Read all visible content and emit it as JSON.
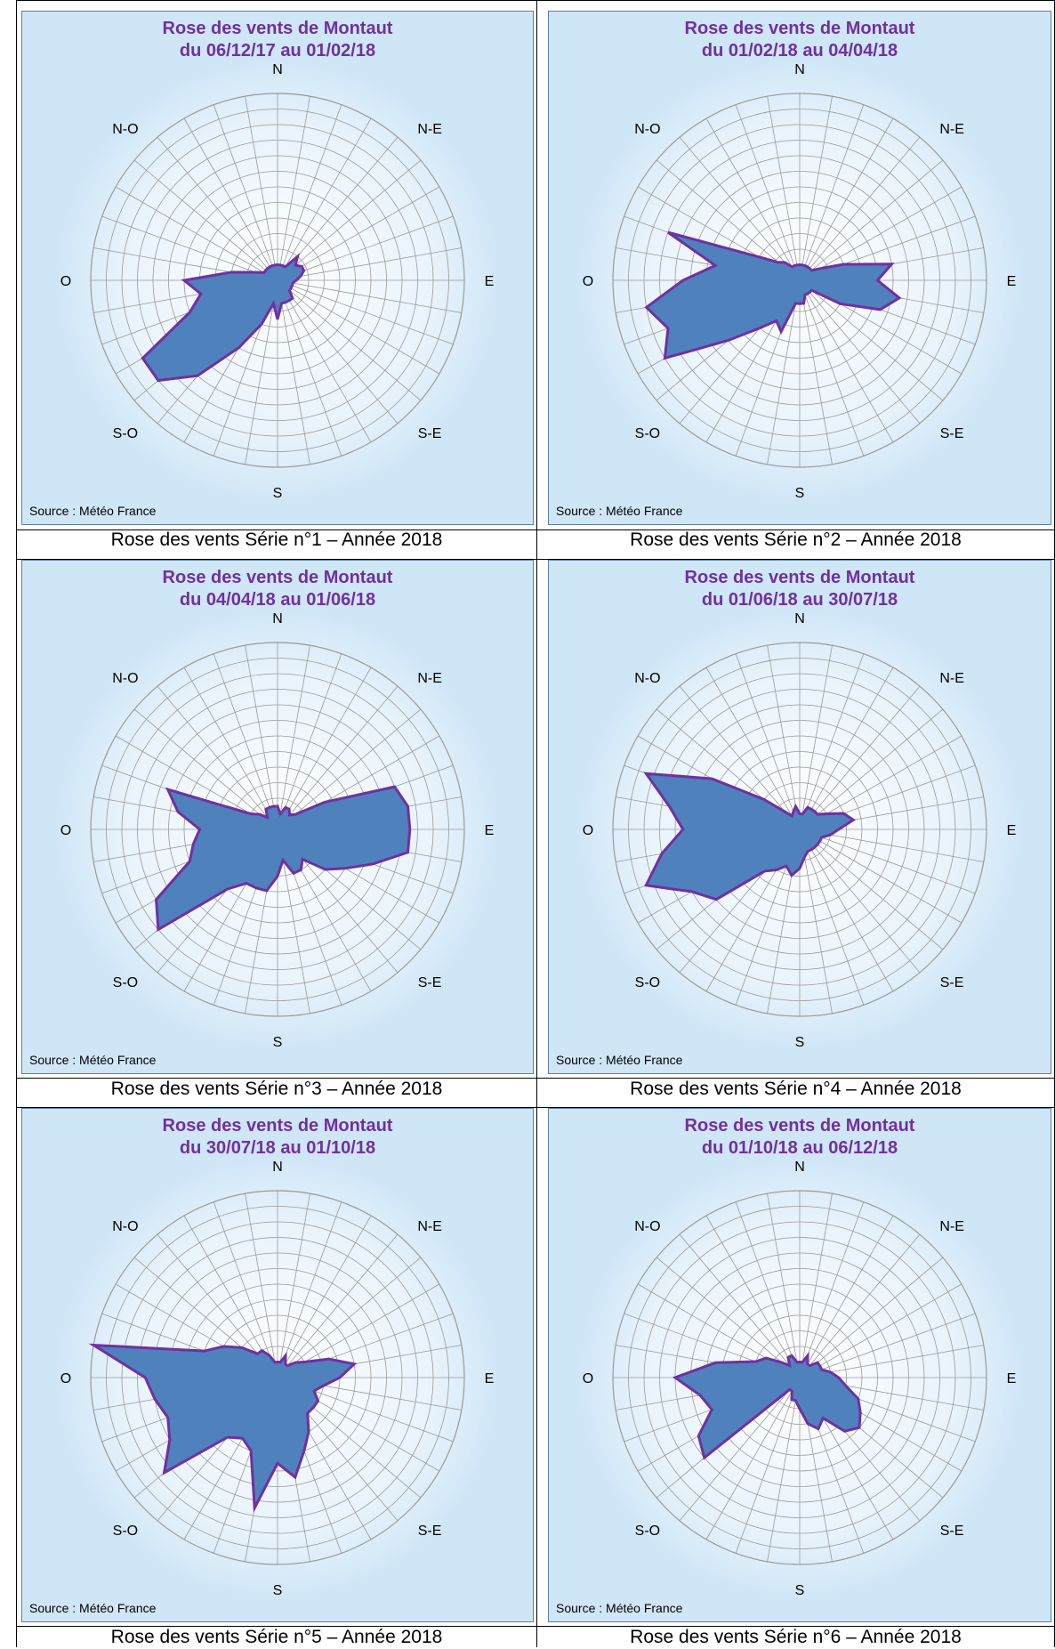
{
  "style": {
    "title_color": "#7030a0",
    "fill_color": "#4f81bd",
    "stroke_color": "#7030a0",
    "grid_color": "#9a9a9a",
    "panel_bg": "#cfe6f7"
  },
  "directions": [
    "N",
    "N-E",
    "E",
    "S-E",
    "S",
    "S-O",
    "O",
    "N-O"
  ],
  "source": "Source : Météo France",
  "chart_data": [
    {
      "type": "radar",
      "title": "Rose des vents de Montaut",
      "subtitle": "du 06/12/17 au 01/02/18",
      "caption": "Rose des vents Série n°1 – Année 2018",
      "values": [
        1,
        1,
        1,
        1,
        2,
        1.5,
        1.8,
        1.8,
        1.5,
        1.2,
        1,
        1,
        1,
        1,
        1.5,
        1.5,
        1.5,
        1.5,
        2.5,
        1.5,
        3,
        5,
        8,
        10,
        10,
        6,
        5,
        6,
        3,
        1.5,
        1,
        1,
        1,
        1,
        1,
        1
      ]
    },
    {
      "type": "radar",
      "title": "Rose des vents de Montaut",
      "subtitle": "du 01/02/18 au 04/04/18",
      "caption": "Rose des vents Série n°2 – Année 2018",
      "values": [
        1,
        1,
        1,
        1,
        1,
        1,
        1.5,
        3,
        6,
        5,
        6.5,
        5.5,
        3,
        1,
        1,
        1,
        1,
        1.5,
        1.5,
        1.5,
        3.5,
        3,
        4,
        6,
        10,
        9,
        10,
        7.5,
        5.5,
        9,
        3,
        1.8,
        1.5,
        1,
        1,
        1
      ]
    },
    {
      "type": "radar",
      "title": "Rose des vents de Montaut",
      "subtitle": "du 04/04/18 au 01/06/18",
      "caption": "Rose des vents Série n°3 – Année 2018",
      "values": [
        1.5,
        1,
        1.5,
        1.5,
        1.2,
        1.5,
        3.5,
        8,
        8.5,
        8.5,
        8.5,
        6.5,
        5,
        4,
        2.5,
        3,
        3,
        2,
        3,
        4,
        4,
        4,
        5,
        10,
        9,
        6,
        5.5,
        5,
        6.5,
        7.5,
        2,
        1.5,
        1,
        1.5,
        1.5,
        1.5
      ]
    },
    {
      "type": "radar",
      "title": "Rose des vents de Montaut",
      "subtitle": "du 01/06/18 au 30/07/18",
      "caption": "Rose des vents Série n°4 – Année 2018",
      "values": [
        1,
        1,
        1.5,
        1.5,
        1.5,
        1.5,
        2,
        3,
        3.5,
        2.5,
        2,
        1.5,
        1.5,
        1.5,
        1.5,
        1.5,
        1.5,
        1.8,
        2.5,
        3,
        2.5,
        3,
        3.5,
        7,
        8,
        10.5,
        9,
        7.5,
        8.5,
        10.5,
        6.5,
        3,
        1.5,
        1,
        1.2,
        1.5
      ]
    },
    {
      "type": "radar",
      "title": "Rose des vents de Montaut",
      "subtitle": "du 30/07/18 au 01/10/18",
      "caption": "Rose des vents Série n°5 – Année 2018",
      "values": [
        1,
        1,
        1.5,
        1,
        1,
        1.5,
        2,
        3.5,
        5,
        4,
        3,
        2.5,
        3,
        3,
        3,
        4,
        5,
        6.5,
        5.5,
        8.5,
        5,
        4.5,
        5,
        9.5,
        8,
        7.5,
        8,
        8.5,
        12,
        5,
        4,
        3,
        2,
        2,
        1.5,
        1
      ]
    },
    {
      "type": "radar",
      "title": "Rose des vents de Montaut",
      "subtitle": "du 01/10/18 au 06/12/18",
      "caption": "Rose des vents Série n°6 – Année 2018",
      "values": [
        1,
        1,
        1.5,
        1,
        1,
        1.5,
        1.5,
        1.5,
        2,
        2.5,
        3,
        4,
        4.5,
        5,
        4.5,
        3,
        3.5,
        3,
        2,
        1.5,
        1.5,
        1,
        1,
        8,
        7.5,
        6,
        6.5,
        8,
        5.5,
        3,
        2.5,
        1.5,
        1,
        1.5,
        1.5,
        1
      ]
    }
  ]
}
